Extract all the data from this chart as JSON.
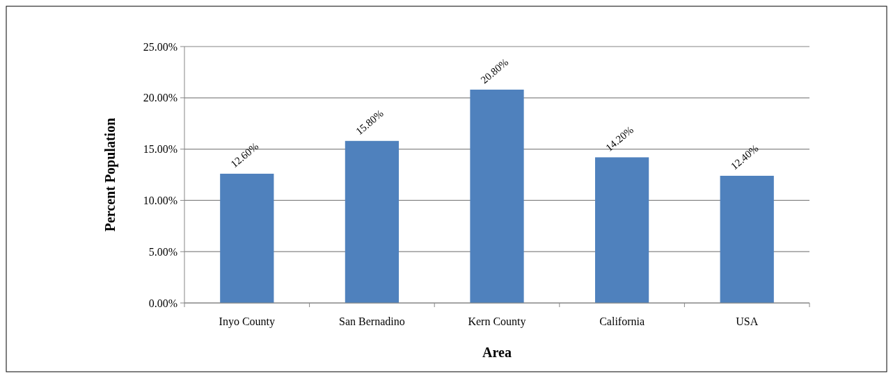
{
  "chart_data": {
    "type": "bar",
    "xlabel": "Area",
    "ylabel": "Percent Population",
    "categories": [
      "Inyo County",
      "San Bernadino",
      "Kern County",
      "California",
      "USA"
    ],
    "values": [
      12.6,
      15.8,
      20.8,
      14.2,
      12.4
    ],
    "value_labels": [
      "12.60%",
      "15.80%",
      "20.80%",
      "14.20%",
      "12.40%"
    ],
    "color": "#4f81bd",
    "ylim": [
      0,
      25
    ],
    "yticks": [
      {
        "value": 0,
        "label": "0.00%"
      },
      {
        "value": 5,
        "label": "5.00%"
      },
      {
        "value": 10,
        "label": "10.00%"
      },
      {
        "value": 15,
        "label": "15.00%"
      },
      {
        "value": 20,
        "label": "20.00%"
      },
      {
        "value": 25,
        "label": "25.00%"
      }
    ],
    "grid": "y"
  }
}
